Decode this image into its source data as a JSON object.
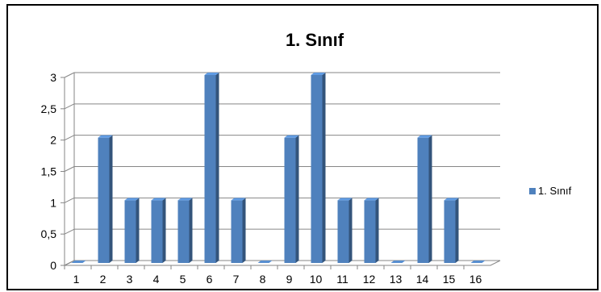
{
  "chart_data": {
    "type": "bar",
    "title": "1. Sınıf",
    "xlabel": "",
    "ylabel": "",
    "categories": [
      "1",
      "2",
      "3",
      "4",
      "5",
      "6",
      "7",
      "8",
      "9",
      "10",
      "11",
      "12",
      "13",
      "14",
      "15",
      "16"
    ],
    "series": [
      {
        "name": "1. Sınıf",
        "color": "#4F81BD",
        "values": [
          0,
          2,
          1,
          1,
          1,
          3,
          1,
          0,
          2,
          3,
          1,
          1,
          0,
          2,
          1,
          0
        ]
      }
    ],
    "ylim": [
      0,
      3
    ],
    "y_ticks": [
      "0",
      "0,5",
      "1",
      "1,5",
      "2",
      "2,5",
      "3"
    ],
    "grid": true,
    "legend_position": "right",
    "style": "3d-column"
  }
}
